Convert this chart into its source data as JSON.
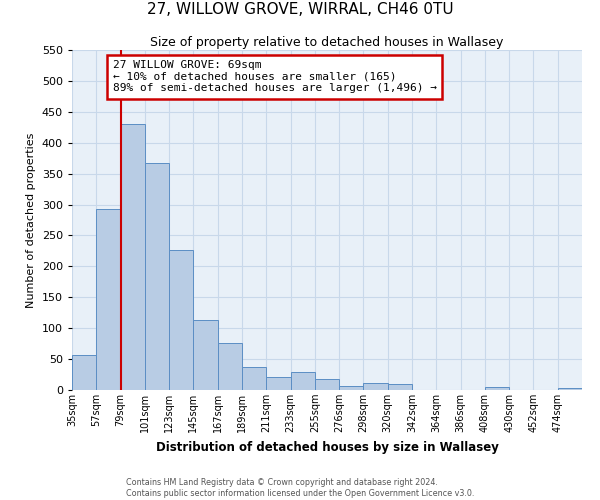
{
  "title": "27, WILLOW GROVE, WIRRAL, CH46 0TU",
  "subtitle": "Size of property relative to detached houses in Wallasey",
  "xlabel": "Distribution of detached houses by size in Wallasey",
  "ylabel": "Number of detached properties",
  "bar_labels": [
    "35sqm",
    "57sqm",
    "79sqm",
    "101sqm",
    "123sqm",
    "145sqm",
    "167sqm",
    "189sqm",
    "211sqm",
    "233sqm",
    "255sqm",
    "276sqm",
    "298sqm",
    "320sqm",
    "342sqm",
    "364sqm",
    "386sqm",
    "408sqm",
    "430sqm",
    "452sqm",
    "474sqm"
  ],
  "bar_values": [
    57,
    293,
    430,
    368,
    226,
    113,
    76,
    38,
    21,
    29,
    18,
    6,
    11,
    9,
    0,
    0,
    0,
    5,
    0,
    0,
    3
  ],
  "bar_color": "#b8cce4",
  "bar_edge_color": "#5b8ec4",
  "grid_color": "#c8d8ea",
  "background_color": "#e8f0f8",
  "vline_color": "#cc0000",
  "annotation_box_text": "27 WILLOW GROVE: 69sqm\n← 10% of detached houses are smaller (165)\n89% of semi-detached houses are larger (1,496) →",
  "annotation_box_color": "#cc0000",
  "ylim": [
    0,
    550
  ],
  "yticks": [
    0,
    50,
    100,
    150,
    200,
    250,
    300,
    350,
    400,
    450,
    500,
    550
  ],
  "footer_line1": "Contains HM Land Registry data © Crown copyright and database right 2024.",
  "footer_line2": "Contains public sector information licensed under the Open Government Licence v3.0."
}
